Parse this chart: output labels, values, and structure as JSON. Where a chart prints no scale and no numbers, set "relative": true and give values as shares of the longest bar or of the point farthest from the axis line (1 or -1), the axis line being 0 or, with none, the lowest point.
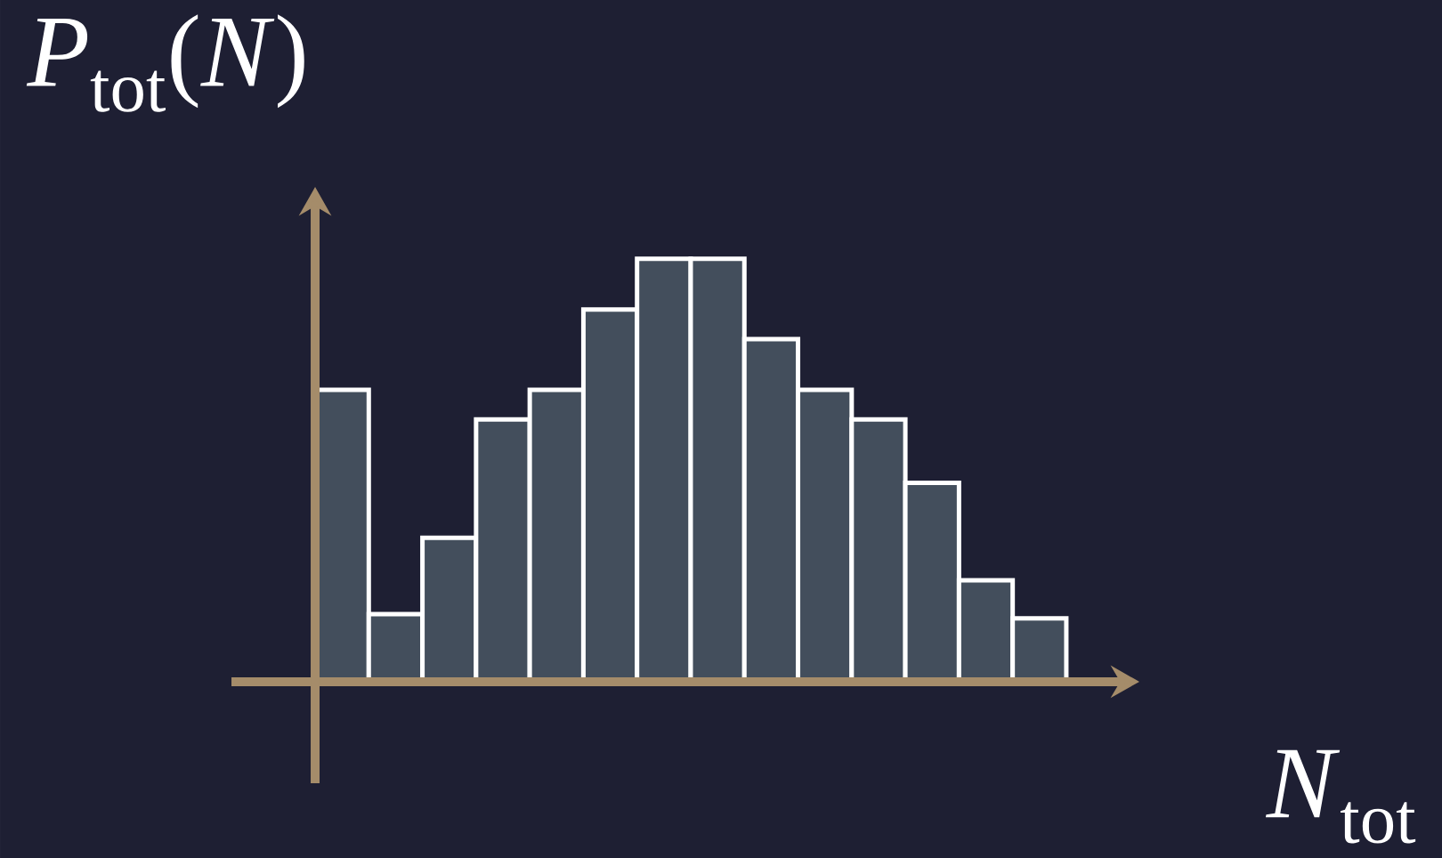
{
  "chart_data": {
    "type": "bar",
    "relative": true,
    "xlabel": "*N*$_{tot}$",
    "ylabel": "*P*$_{tot}$(*N*)",
    "categories": [
      null,
      null,
      null,
      null,
      null,
      null,
      null,
      null,
      null,
      null,
      null,
      null,
      null,
      null
    ],
    "values": [
      0.69,
      0.16,
      0.34,
      0.62,
      0.69,
      0.88,
      1,
      1,
      0.81,
      0.69,
      0.62,
      0.47,
      0.24,
      0.15
    ],
    "color": "#434e5c"
  }
}
